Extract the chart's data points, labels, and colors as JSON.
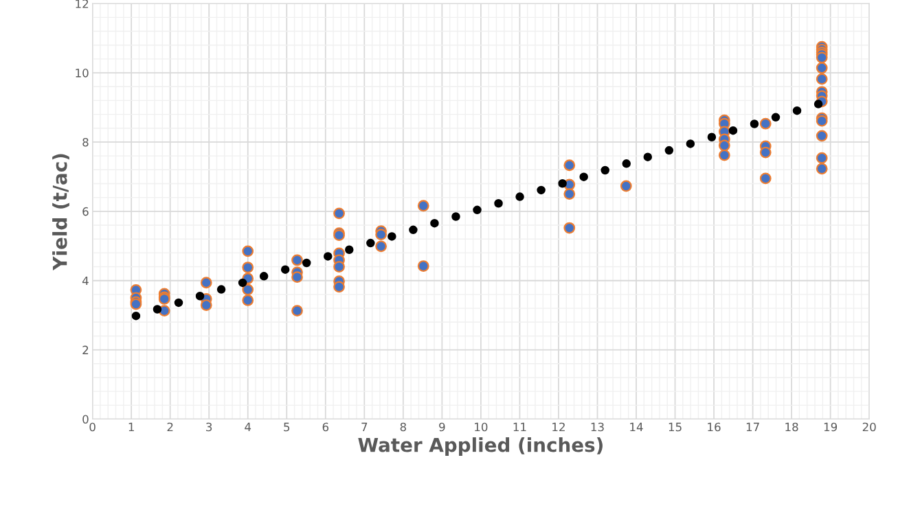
{
  "chart_data": {
    "type": "scatter",
    "xlabel": "Water Applied (inches)",
    "ylabel": "Yield (t/ac)",
    "xlim": [
      0,
      20
    ],
    "ylim": [
      0,
      12
    ],
    "xticks": [
      0,
      1,
      2,
      3,
      4,
      5,
      6,
      7,
      8,
      9,
      10,
      11,
      12,
      13,
      14,
      15,
      16,
      17,
      18,
      19,
      20
    ],
    "yticks": [
      0,
      2,
      4,
      6,
      8,
      10,
      12
    ],
    "grid": true,
    "series": [
      {
        "marker": "circle",
        "color": "#4472c4",
        "x": [
          1.12,
          1.12,
          1.12,
          1.12,
          1.85,
          1.85,
          1.85,
          1.85,
          2.93,
          2.93,
          2.93,
          4.0,
          4.0,
          4.0,
          4.0,
          4.0,
          5.27,
          5.27,
          5.27,
          5.27,
          6.35,
          6.35,
          6.35,
          6.35,
          6.35,
          6.35,
          6.35,
          6.35,
          7.43,
          7.43,
          7.43,
          8.52,
          8.52,
          12.28,
          12.28,
          12.28,
          12.28,
          13.74,
          16.27,
          16.27,
          16.27,
          16.27,
          16.27,
          16.27,
          17.33,
          17.33,
          17.33,
          17.33,
          18.78,
          18.78,
          18.78,
          18.78,
          18.78,
          18.78,
          18.78,
          18.78,
          18.78,
          18.78,
          18.78,
          18.78,
          18.78,
          18.78,
          18.78
        ],
        "values": [
          3.73,
          3.5,
          3.38,
          3.32,
          3.62,
          3.52,
          3.47,
          3.13,
          3.94,
          3.47,
          3.29,
          4.85,
          4.38,
          4.06,
          3.74,
          3.43,
          4.59,
          4.24,
          4.1,
          3.13,
          5.94,
          5.37,
          5.31,
          4.79,
          4.59,
          4.4,
          3.98,
          3.82,
          5.43,
          5.33,
          4.99,
          6.16,
          4.42,
          7.33,
          6.77,
          6.5,
          5.52,
          6.73,
          8.63,
          8.53,
          8.3,
          8.08,
          7.9,
          7.62,
          8.53,
          7.88,
          7.7,
          6.95,
          10.75,
          10.67,
          10.59,
          10.53,
          10.44,
          10.14,
          9.82,
          9.45,
          9.33,
          9.17,
          8.69,
          8.61,
          8.18,
          7.54,
          7.23
        ]
      },
      {
        "type": "line",
        "color": "#000000",
        "line_style": "dotted",
        "x": [
          1.12,
          18.78
        ],
        "values": [
          2.98,
          9.13
        ]
      }
    ]
  }
}
